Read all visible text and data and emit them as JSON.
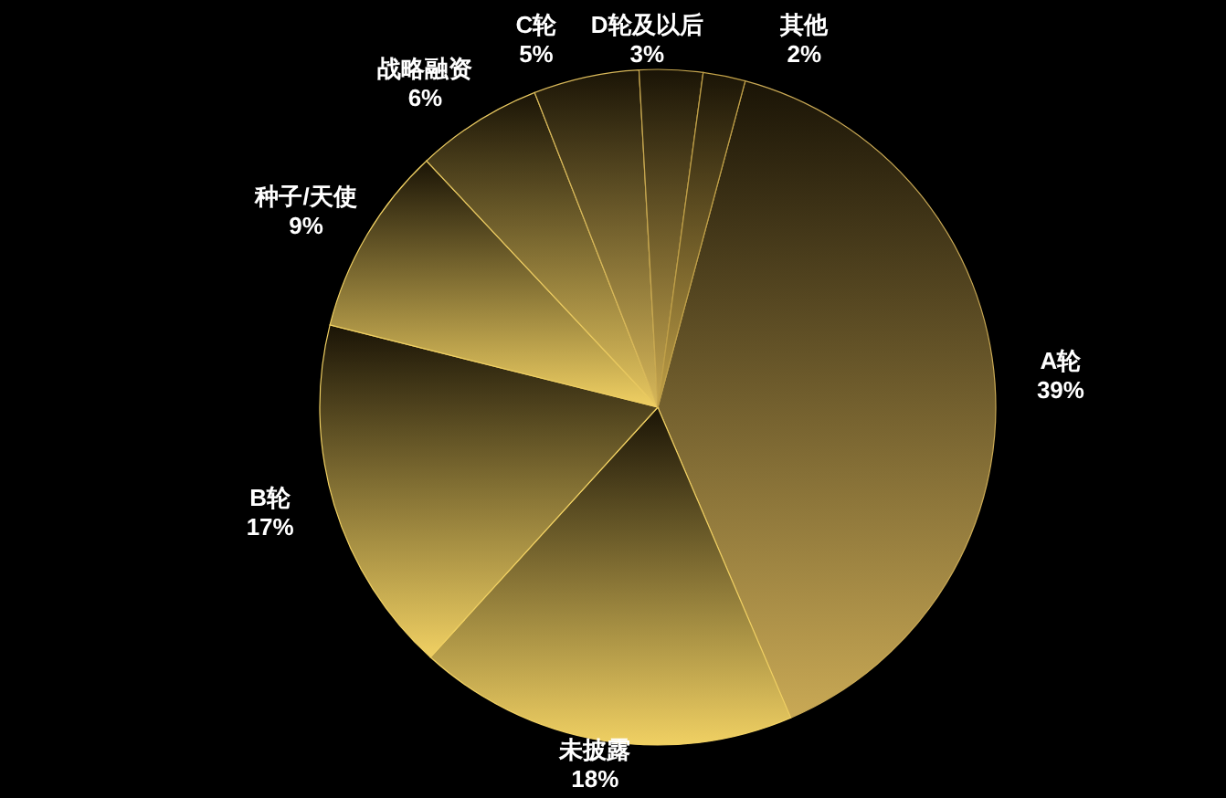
{
  "chart_data": {
    "type": "pie",
    "categories": [
      "A轮",
      "未披露",
      "B轮",
      "种子/天使",
      "战略融资",
      "C轮",
      "D轮及以后",
      "其他"
    ],
    "values": [
      39,
      18,
      17,
      9,
      6,
      5,
      3,
      2
    ],
    "value_labels": [
      "39%",
      "18%",
      "17%",
      "9%",
      "6%",
      "5%",
      "3%",
      "2%"
    ],
    "colors": [
      "#c9a955",
      "#f0d063",
      "#f0d063",
      "#f0d063",
      "#e8c860",
      "#d8b85a",
      "#c8a850",
      "#c0a048"
    ]
  }
}
